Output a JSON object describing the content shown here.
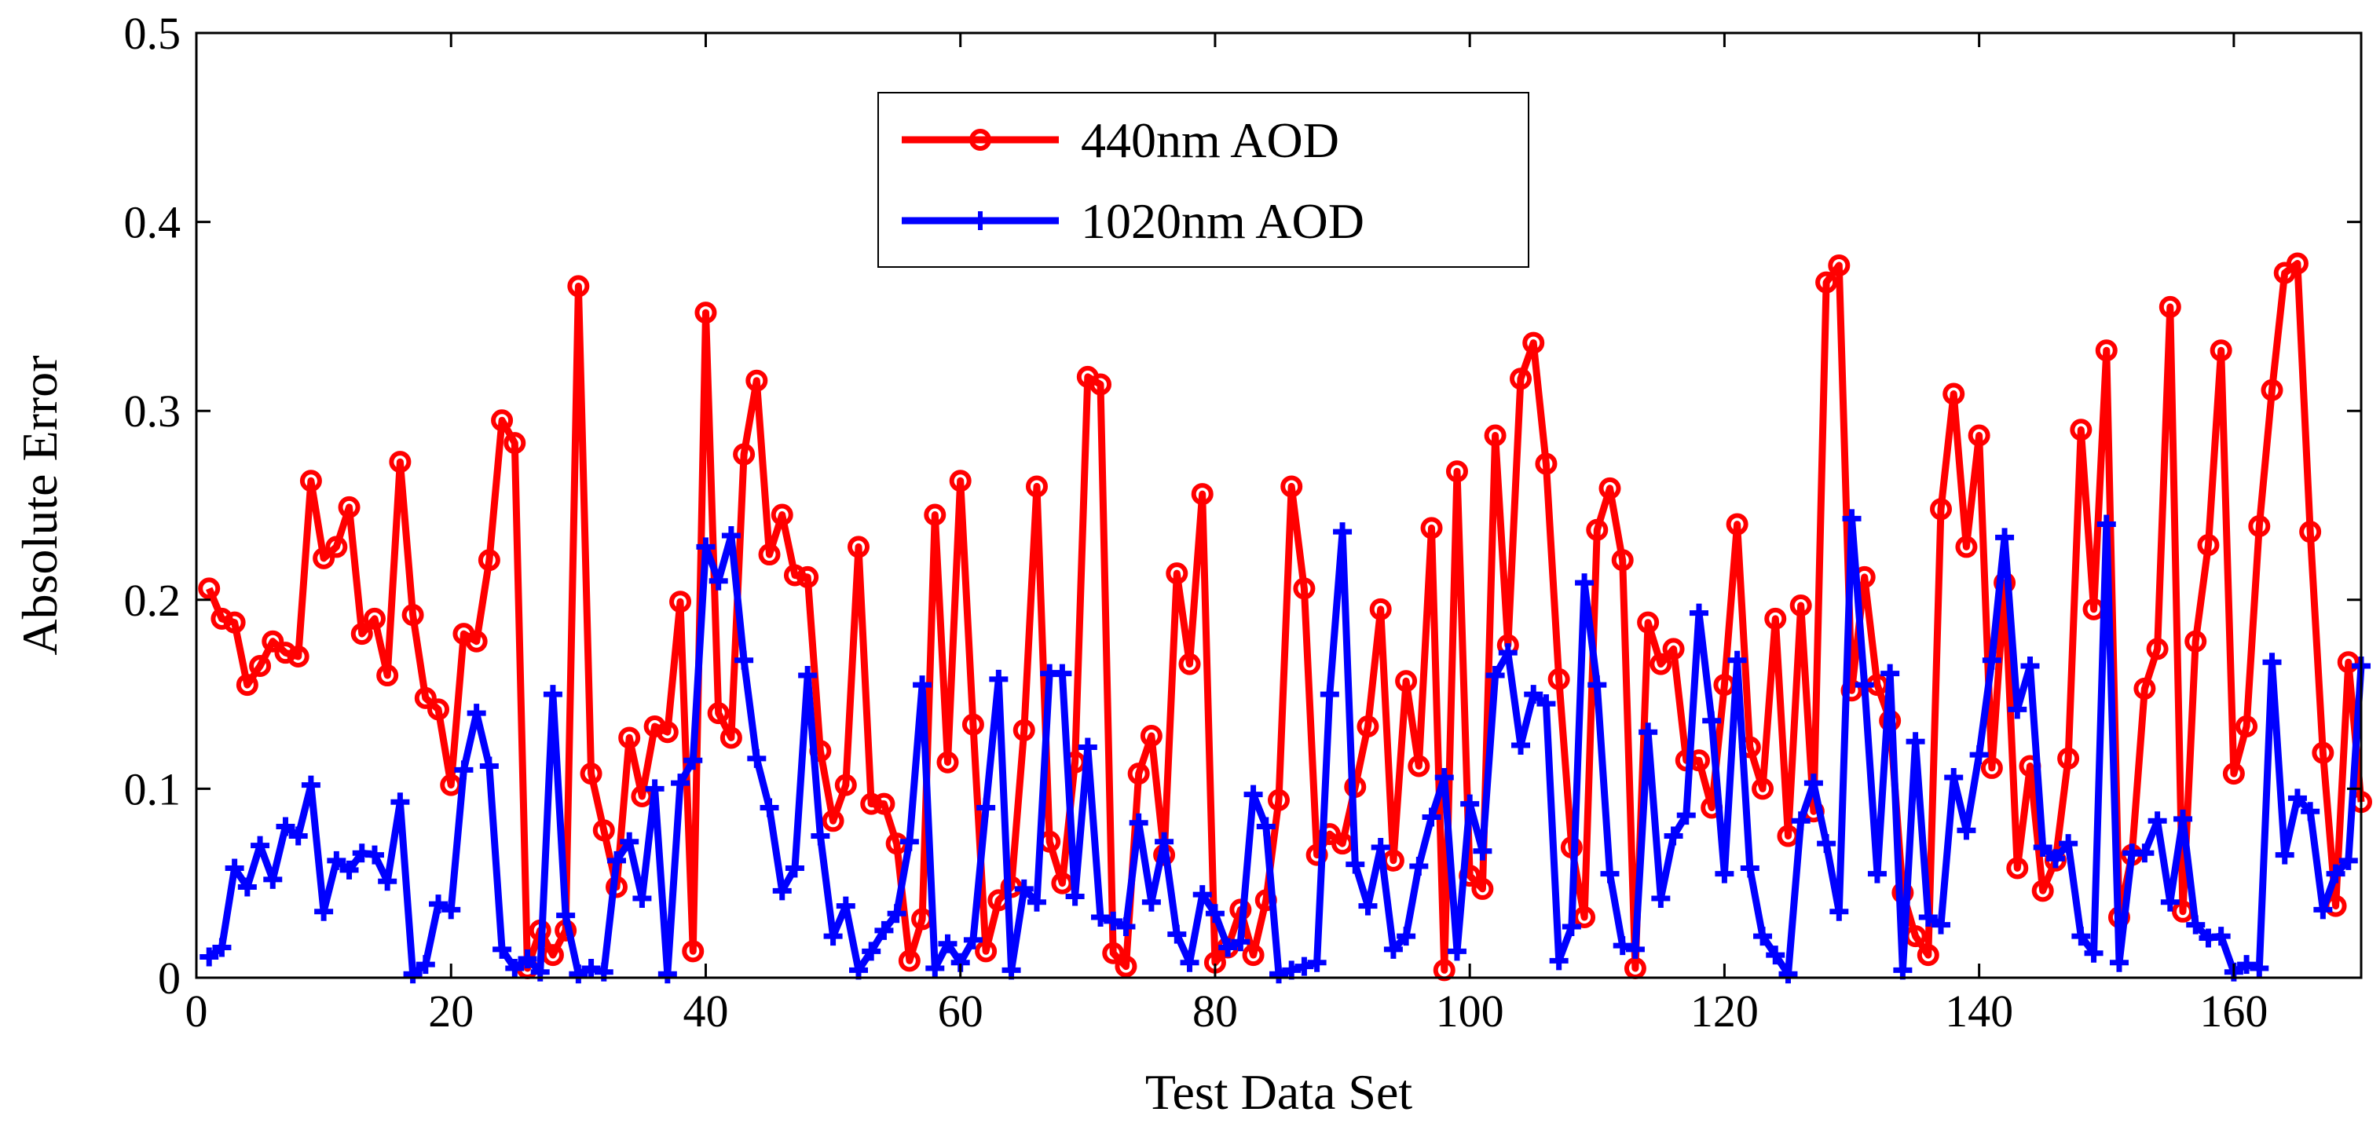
{
  "chart_data": {
    "type": "line",
    "title": "",
    "xlabel": "Test Data Set",
    "ylabel": "Absolute Error",
    "xlim": [
      0,
      170
    ],
    "ylim": [
      0,
      0.5
    ],
    "xticks": [
      0,
      20,
      40,
      60,
      80,
      100,
      120,
      140,
      160
    ],
    "xtick_labels": [
      "0",
      "20",
      "40",
      "60",
      "80",
      "100",
      "120",
      "140",
      "160"
    ],
    "yticks": [
      0,
      0.1,
      0.2,
      0.3,
      0.4,
      0.5
    ],
    "ytick_labels": [
      "0",
      "0.1",
      "0.2",
      "0.3",
      "0.4",
      "0.5"
    ],
    "grid": false,
    "legend_position": "top-center",
    "x": [
      1,
      2,
      3,
      4,
      5,
      6,
      7,
      8,
      9,
      10,
      11,
      12,
      13,
      14,
      15,
      16,
      17,
      18,
      19,
      20,
      21,
      22,
      23,
      24,
      25,
      26,
      27,
      28,
      29,
      30,
      31,
      32,
      33,
      34,
      35,
      36,
      37,
      38,
      39,
      40,
      41,
      42,
      43,
      44,
      45,
      46,
      47,
      48,
      49,
      50,
      51,
      52,
      53,
      54,
      55,
      56,
      57,
      58,
      59,
      60,
      61,
      62,
      63,
      64,
      65,
      66,
      67,
      68,
      69,
      70,
      71,
      72,
      73,
      74,
      75,
      76,
      77,
      78,
      79,
      80,
      81,
      82,
      83,
      84,
      85,
      86,
      87,
      88,
      89,
      90,
      91,
      92,
      93,
      94,
      95,
      96,
      97,
      98,
      99,
      100,
      101,
      102,
      103,
      104,
      105,
      106,
      107,
      108,
      109,
      110,
      111,
      112,
      113,
      114,
      115,
      116,
      117,
      118,
      119,
      120,
      121,
      122,
      123,
      124,
      125,
      126,
      127,
      128,
      129,
      130,
      131,
      132,
      133,
      134,
      135,
      136,
      137,
      138,
      139,
      140,
      141,
      142,
      143,
      144,
      145,
      146,
      147,
      148,
      149,
      150,
      151,
      152,
      153,
      154,
      155,
      156,
      157,
      158,
      159,
      160,
      161,
      162,
      163,
      164,
      165,
      166,
      167,
      168,
      169,
      170
    ],
    "series": [
      {
        "name": "440nm AOD",
        "color": "#ff0000",
        "marker": "circle",
        "values": [
          0.206,
          0.19,
          0.188,
          0.155,
          0.165,
          0.178,
          0.172,
          0.17,
          0.263,
          0.222,
          0.228,
          0.249,
          0.182,
          0.19,
          0.16,
          0.273,
          0.192,
          0.148,
          0.142,
          0.102,
          0.182,
          0.178,
          0.221,
          0.295,
          0.283,
          0.005,
          0.025,
          0.012,
          0.025,
          0.366,
          0.108,
          0.078,
          0.048,
          0.127,
          0.096,
          0.133,
          0.13,
          0.199,
          0.014,
          0.352,
          0.14,
          0.127,
          0.277,
          0.316,
          0.224,
          0.245,
          0.213,
          0.212,
          0.12,
          0.083,
          0.102,
          0.228,
          0.092,
          0.092,
          0.071,
          0.009,
          0.031,
          0.245,
          0.114,
          0.263,
          0.134,
          0.014,
          0.041,
          0.048,
          0.131,
          0.26,
          0.072,
          0.05,
          0.114,
          0.318,
          0.314,
          0.013,
          0.006,
          0.108,
          0.128,
          0.065,
          0.214,
          0.166,
          0.256,
          0.008,
          0.016,
          0.036,
          0.012,
          0.041,
          0.094,
          0.26,
          0.206,
          0.065,
          0.076,
          0.071,
          0.101,
          0.133,
          0.195,
          0.062,
          0.157,
          0.112,
          0.238,
          0.004,
          0.268,
          0.054,
          0.047,
          0.287,
          0.176,
          0.317,
          0.336,
          0.272,
          0.158,
          0.069,
          0.032,
          0.237,
          0.259,
          0.221,
          0.005,
          0.188,
          0.166,
          0.174,
          0.115,
          0.115,
          0.09,
          0.155,
          0.24,
          0.122,
          0.1,
          0.19,
          0.075,
          0.197,
          0.088,
          0.368,
          0.377,
          0.152,
          0.212,
          0.155,
          0.136,
          0.045,
          0.022,
          0.012,
          0.248,
          0.309,
          0.228,
          0.287,
          0.111,
          0.209,
          0.058,
          0.112,
          0.046,
          0.062,
          0.116,
          0.29,
          0.195,
          0.332,
          0.032,
          0.065,
          0.153,
          0.174,
          0.355,
          0.035,
          0.178,
          0.229,
          0.332,
          0.108,
          0.133,
          0.239,
          0.311,
          0.373,
          0.378,
          0.236,
          0.119,
          0.038,
          0.167,
          0.093
        ]
      },
      {
        "name": "1020nm AOD",
        "color": "#0000ff",
        "marker": "plus",
        "values": [
          0.011,
          0.016,
          0.058,
          0.048,
          0.07,
          0.052,
          0.08,
          0.075,
          0.102,
          0.035,
          0.062,
          0.057,
          0.066,
          0.065,
          0.051,
          0.093,
          0.002,
          0.007,
          0.039,
          0.036,
          0.11,
          0.14,
          0.112,
          0.015,
          0.005,
          0.01,
          0.003,
          0.15,
          0.033,
          0.002,
          0.005,
          0.003,
          0.062,
          0.072,
          0.042,
          0.1,
          0.002,
          0.103,
          0.115,
          0.228,
          0.21,
          0.234,
          0.168,
          0.116,
          0.09,
          0.046,
          0.058,
          0.16,
          0.075,
          0.022,
          0.038,
          0.004,
          0.014,
          0.025,
          0.034,
          0.072,
          0.155,
          0.005,
          0.018,
          0.008,
          0.02,
          0.09,
          0.158,
          0.004,
          0.047,
          0.04,
          0.161,
          0.161,
          0.043,
          0.122,
          0.032,
          0.03,
          0.027,
          0.082,
          0.04,
          0.072,
          0.023,
          0.008,
          0.044,
          0.034,
          0.016,
          0.019,
          0.097,
          0.08,
          0.002,
          0.004,
          0.006,
          0.008,
          0.15,
          0.236,
          0.06,
          0.038,
          0.069,
          0.015,
          0.022,
          0.059,
          0.085,
          0.106,
          0.014,
          0.092,
          0.067,
          0.16,
          0.172,
          0.123,
          0.15,
          0.145,
          0.009,
          0.027,
          0.209,
          0.155,
          0.055,
          0.017,
          0.015,
          0.13,
          0.042,
          0.075,
          0.086,
          0.193,
          0.136,
          0.055,
          0.168,
          0.058,
          0.022,
          0.012,
          0.002,
          0.083,
          0.103,
          0.071,
          0.035,
          0.243,
          0.155,
          0.055,
          0.161,
          0.004,
          0.125,
          0.032,
          0.028,
          0.106,
          0.078,
          0.118,
          0.168,
          0.233,
          0.142,
          0.165,
          0.069,
          0.063,
          0.071,
          0.022,
          0.013,
          0.24,
          0.008,
          0.066,
          0.066,
          0.083,
          0.04,
          0.084,
          0.028,
          0.021,
          0.022,
          0.003,
          0.007,
          0.005,
          0.167,
          0.065,
          0.095,
          0.088,
          0.036,
          0.055,
          0.062,
          0.165
        ]
      }
    ]
  }
}
